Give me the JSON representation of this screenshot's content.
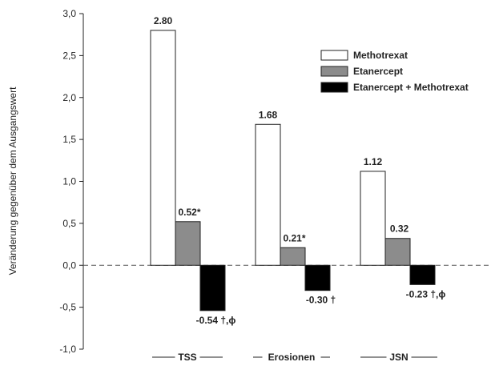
{
  "chart_data": {
    "type": "bar",
    "title": "",
    "xlabel": "",
    "ylabel": "Veränderung gegenüber dem Ausgangswert",
    "ylim": [
      -1.0,
      3.0
    ],
    "yticks": [
      -1.0,
      -0.5,
      0.0,
      0.5,
      1.0,
      1.5,
      2.0,
      2.5,
      3.0
    ],
    "ytick_labels": [
      "-1,0",
      "-0,5",
      "0,0",
      "0,5",
      "1,0",
      "1,5",
      "2,0",
      "2,5",
      "3,0"
    ],
    "categories": [
      "TSS",
      "Erosionen",
      "JSN"
    ],
    "series": [
      {
        "name": "Methotrexat",
        "color": "#ffffff",
        "values": [
          2.8,
          1.68,
          1.12
        ],
        "labels": [
          "2.80",
          "1.68",
          "1.12"
        ]
      },
      {
        "name": "Etanercept",
        "color": "#8c8c8c",
        "values": [
          0.52,
          0.21,
          0.32
        ],
        "labels": [
          "0.52*",
          "0.21*",
          "0.32"
        ]
      },
      {
        "name": "Etanercept + Methotrexat",
        "color": "#000000",
        "values": [
          -0.54,
          -0.3,
          -0.23
        ],
        "labels": [
          "-0.54 †,ϕ",
          "-0.30 †",
          "-0.23 †,ϕ"
        ]
      }
    ],
    "zero_line": "dashed",
    "grid": false,
    "legend_position": "top-right"
  }
}
